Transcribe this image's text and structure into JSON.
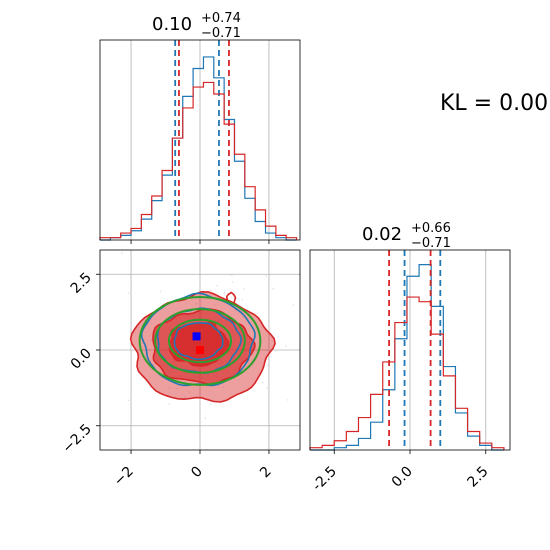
{
  "figure": {
    "kl_label": "KL = 0.00"
  },
  "chart_data": [
    {
      "panel": "top-left",
      "type": "histogram",
      "title": {
        "median": "0.10",
        "plus": "+0.74",
        "minus": "−0.71"
      },
      "xlim": [
        -2.9,
        2.9
      ],
      "grid": true,
      "series": [
        {
          "name": "",
          "color": "#1f77b4",
          "bins": [
            -2.9,
            -2.6,
            -2.3,
            -2.0,
            -1.7,
            -1.4,
            -1.1,
            -0.8,
            -0.5,
            -0.2,
            0.1,
            0.4,
            0.7,
            1.0,
            1.3,
            1.6,
            1.9,
            2.2,
            2.5,
            2.8
          ],
          "counts": [
            0,
            1,
            2,
            4,
            9,
            17,
            28,
            44,
            62,
            74,
            79,
            70,
            52,
            34,
            18,
            8,
            3,
            1,
            0
          ],
          "quantiles": [
            -0.72,
            0.55
          ]
        },
        {
          "name": "",
          "color": "#d62728",
          "bins": [
            -2.9,
            -2.6,
            -2.3,
            -2.0,
            -1.7,
            -1.4,
            -1.1,
            -0.8,
            -0.5,
            -0.2,
            0.1,
            0.4,
            0.7,
            1.0,
            1.3,
            1.6,
            1.9,
            2.2,
            2.5,
            2.8
          ],
          "counts": [
            1,
            1,
            3,
            5,
            11,
            19,
            30,
            44,
            57,
            66,
            68,
            63,
            50,
            37,
            23,
            13,
            6,
            2,
            1
          ],
          "quantiles": [
            -0.61,
            0.84
          ]
        }
      ]
    },
    {
      "panel": "bottom-left",
      "type": "contour",
      "xlim": [
        -2.9,
        2.9
      ],
      "ylim": [
        -3.3,
        3.3
      ],
      "yticks": [
        "-2.5",
        "0.0",
        "2.5"
      ],
      "xticks": [
        "-2",
        "0",
        "2"
      ],
      "grid": true,
      "series": [
        {
          "name": "",
          "color": "#d62728",
          "kind": "filled-density",
          "levels": [
            0.39,
            0.86,
            0.99
          ]
        },
        {
          "name": "",
          "color": "#1f77b4",
          "kind": "contour-lines"
        },
        {
          "name": "",
          "color": "#2ca02c",
          "kind": "contour-lines",
          "center": [
            0.0,
            0.3
          ]
        }
      ],
      "markers": [
        {
          "color": "#0000ff",
          "x": -0.1,
          "y": 0.45
        },
        {
          "color": "#ff0000",
          "x": 0.0,
          "y": 0.0
        }
      ]
    },
    {
      "panel": "bottom-right",
      "type": "histogram",
      "title": {
        "median": "0.02",
        "plus": "+0.66",
        "minus": "−0.71"
      },
      "xlim": [
        -3.3,
        3.3
      ],
      "xticks": [
        "-2.5",
        "0.0",
        "2.5"
      ],
      "grid": true,
      "series": [
        {
          "name": "",
          "color": "#1f77b4",
          "bins": [
            -3.3,
            -2.9,
            -2.5,
            -2.1,
            -1.7,
            -1.3,
            -0.9,
            -0.5,
            -0.1,
            0.3,
            0.7,
            1.1,
            1.5,
            1.9,
            2.3,
            2.7,
            3.1
          ],
          "counts": [
            0,
            0,
            1,
            2,
            5,
            12,
            26,
            48,
            75,
            80,
            62,
            36,
            16,
            6,
            2,
            0
          ],
          "quantiles": [
            -0.18,
            1.0
          ]
        },
        {
          "name": "",
          "color": "#d62728",
          "bins": [
            -3.3,
            -2.9,
            -2.5,
            -2.1,
            -1.7,
            -1.3,
            -0.9,
            -0.5,
            -0.1,
            0.3,
            0.7,
            1.1,
            1.5,
            1.9,
            2.3,
            2.7,
            3.1
          ],
          "counts": [
            1,
            2,
            4,
            8,
            14,
            24,
            38,
            55,
            66,
            64,
            50,
            32,
            18,
            8,
            3,
            1
          ],
          "quantiles": [
            -0.69,
            0.68
          ]
        }
      ]
    }
  ]
}
